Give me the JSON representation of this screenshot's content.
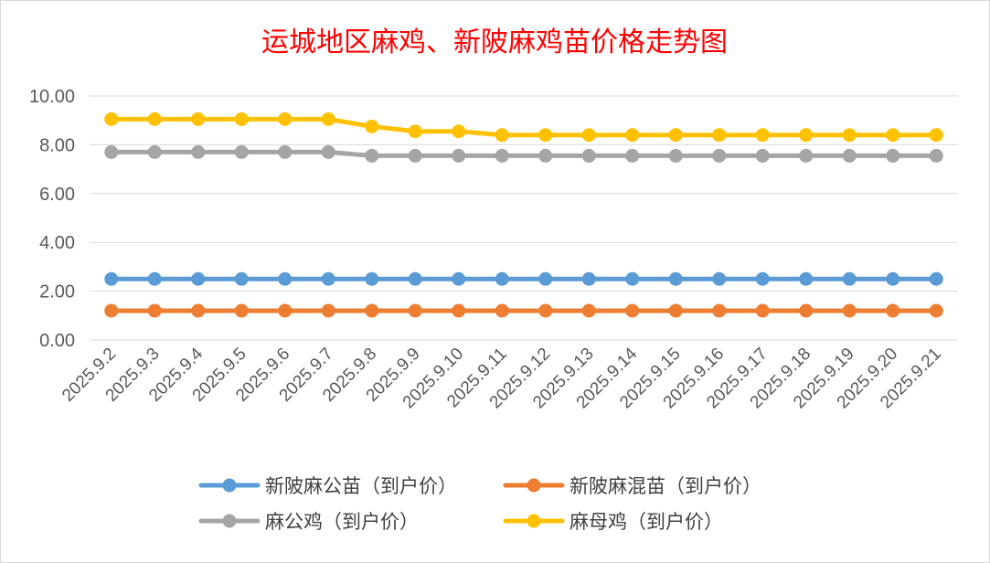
{
  "chart_data": {
    "type": "line",
    "title": "运城地区麻鸡、新陂麻鸡苗价格走势图",
    "xlabel": "",
    "ylabel": "",
    "ylim": [
      0,
      10
    ],
    "yticks": [
      "0.00",
      "2.00",
      "4.00",
      "6.00",
      "8.00",
      "10.00"
    ],
    "grid": true,
    "legend_position": "bottom",
    "categories": [
      "2025.9.2",
      "2025.9.3",
      "2025.9.4",
      "2025.9.5",
      "2025.9.6",
      "2025.9.7",
      "2025.9.8",
      "2025.9.9",
      "2025.9.10",
      "2025.9.11",
      "2025.9.12",
      "2025.9.13",
      "2025.9.14",
      "2025.9.15",
      "2025.9.16",
      "2025.9.17",
      "2025.9.18",
      "2025.9.19",
      "2025.9.20",
      "2025.9.21"
    ],
    "series": [
      {
        "name": "新陂麻公苗（到户价）",
        "color": "#5b9bd5",
        "values": [
          2.5,
          2.5,
          2.5,
          2.5,
          2.5,
          2.5,
          2.5,
          2.5,
          2.5,
          2.5,
          2.5,
          2.5,
          2.5,
          2.5,
          2.5,
          2.5,
          2.5,
          2.5,
          2.5,
          2.5
        ]
      },
      {
        "name": "新陂麻混苗（到户价）",
        "color": "#ed7d31",
        "values": [
          1.2,
          1.2,
          1.2,
          1.2,
          1.2,
          1.2,
          1.2,
          1.2,
          1.2,
          1.2,
          1.2,
          1.2,
          1.2,
          1.2,
          1.2,
          1.2,
          1.2,
          1.2,
          1.2,
          1.2
        ]
      },
      {
        "name": "麻公鸡（到户价）",
        "color": "#a5a5a5",
        "values": [
          7.7,
          7.7,
          7.7,
          7.7,
          7.7,
          7.7,
          7.55,
          7.55,
          7.55,
          7.55,
          7.55,
          7.55,
          7.55,
          7.55,
          7.55,
          7.55,
          7.55,
          7.55,
          7.55,
          7.55
        ]
      },
      {
        "name": "麻母鸡（到户价）",
        "color": "#ffc000",
        "values": [
          9.05,
          9.05,
          9.05,
          9.05,
          9.05,
          9.05,
          8.75,
          8.55,
          8.55,
          8.4,
          8.4,
          8.4,
          8.4,
          8.4,
          8.4,
          8.4,
          8.4,
          8.4,
          8.4,
          8.4
        ]
      }
    ]
  }
}
